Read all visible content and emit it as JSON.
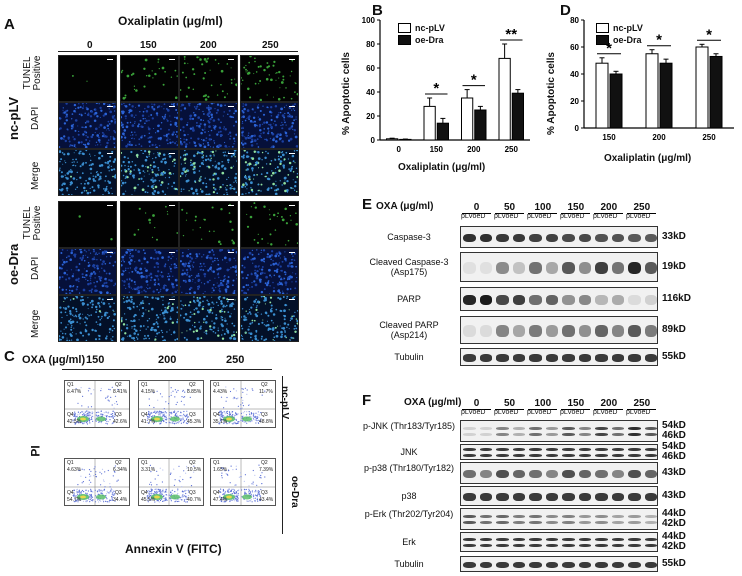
{
  "panelA": {
    "label": "A",
    "title": "Oxaliplatin (μg/ml)",
    "concentrations": [
      "0",
      "150",
      "200",
      "250"
    ],
    "groups": [
      "nc-pLV",
      "oe-Dra"
    ],
    "rows": [
      "TUNEL Positive",
      "DAPI",
      "Merge"
    ]
  },
  "panelB": {
    "label": "B",
    "legend": [
      "nc-pLV",
      "oe-Dra"
    ],
    "ylabel": "% Apoptotic cells",
    "xlabel": "Oxaliplatin (μg/ml)",
    "significance": [
      "*",
      "*",
      "**"
    ]
  },
  "panelD": {
    "label": "D",
    "legend": [
      "nc-pLV",
      "oe-Dra"
    ],
    "ylabel": "% Apoptotic cells",
    "xlabel": "Oxaliplatin (μg/ml)",
    "significance": [
      "*",
      "*",
      "*"
    ]
  },
  "chart_data": [
    {
      "type": "bar",
      "categories": [
        "0",
        "150",
        "200",
        "250"
      ],
      "series": [
        {
          "name": "nc-pLV",
          "values": [
            1,
            28,
            35,
            68
          ],
          "errors": [
            0.5,
            7,
            7,
            12
          ]
        },
        {
          "name": "oe-Dra",
          "values": [
            0.5,
            14,
            25,
            39
          ],
          "errors": [
            0.3,
            4,
            3,
            3
          ]
        }
      ],
      "ylim": [
        0,
        100
      ],
      "yticks": [
        0,
        20,
        40,
        60,
        80,
        100
      ]
    },
    {
      "type": "bar",
      "categories": [
        "150",
        "200",
        "250"
      ],
      "series": [
        {
          "name": "nc-pLV",
          "values": [
            48,
            55,
            60
          ],
          "errors": [
            4,
            3,
            2
          ]
        },
        {
          "name": "oe-Dra",
          "values": [
            40,
            48,
            53
          ],
          "errors": [
            2,
            3,
            2
          ]
        }
      ],
      "ylim": [
        0,
        80
      ],
      "yticks": [
        0,
        20,
        40,
        60,
        80
      ]
    }
  ],
  "panelC": {
    "label": "C",
    "header": "OXA (μg/ml)",
    "concentrations": [
      "150",
      "200",
      "250"
    ],
    "groups": [
      "nc-pLV",
      "oe-Dra"
    ],
    "ylabel": "PI",
    "xlabel": "Annexin V (FITC)",
    "plots": [
      [
        {
          "q1": "6.47%",
          "q2": "8.41%",
          "q3": "42.6%",
          "q4": "42.5%"
        },
        {
          "q1": "4.15%",
          "q2": "8.85%",
          "q3": "45.3%",
          "q4": "41.7%"
        },
        {
          "q1": "4.43%",
          "q2": "11.7%",
          "q3": "48.8%",
          "q4": "35.1%"
        }
      ],
      [
        {
          "q1": "4.63%",
          "q2": "6.34%",
          "q3": "34.4%",
          "q4": "54.7%"
        },
        {
          "q1": "3.31%",
          "q2": "10.5%",
          "q3": "40.7%",
          "q4": "45.5%"
        },
        {
          "q1": "1.65%",
          "q2": "7.39%",
          "q3": "43.4%",
          "q4": "47.4%"
        }
      ]
    ]
  },
  "panelE": {
    "label": "E",
    "header": "OXA (μg/ml)",
    "concentrations": [
      "0",
      "50",
      "100",
      "150",
      "200",
      "250"
    ],
    "lane_labels": "pLVoeD",
    "rows": [
      {
        "label": "Caspase-3",
        "mw": "33kD"
      },
      {
        "label": "Cleaved Caspase-3 (Asp175)",
        "mw": "19kD"
      },
      {
        "label": "PARP",
        "mw": "116kD"
      },
      {
        "label": "Cleaved PARP (Asp214)",
        "mw": "89kD"
      },
      {
        "label": "Tubulin",
        "mw": "55kD"
      }
    ]
  },
  "panelF": {
    "label": "F",
    "header": "OXA (μg/ml)",
    "concentrations": [
      "0",
      "50",
      "100",
      "150",
      "200",
      "250"
    ],
    "lane_labels": "pLVoeD",
    "rows": [
      {
        "label": "p-JNK (Thr183/Tyr185)",
        "mw": "54kD",
        "mw2": "46kD"
      },
      {
        "label": "JNK",
        "mw": "54kD",
        "mw2": "46kD"
      },
      {
        "label": "p-p38 (Thr180/Tyr182)",
        "mw": "43kD"
      },
      {
        "label": "p38",
        "mw": "43kD"
      },
      {
        "label": "p-Erk (Thr202/Tyr204)",
        "mw": "44kD",
        "mw2": "42kD"
      },
      {
        "label": "Erk",
        "mw": "44kD",
        "mw2": "42kD"
      },
      {
        "label": "Tubulin",
        "mw": "55kD"
      }
    ]
  },
  "colors": {
    "tunel": "#3aa23a",
    "dapi": "#1c4fb0",
    "merge": "#2a7fb8",
    "bar_white": "#ffffff",
    "bar_black": "#111111"
  }
}
